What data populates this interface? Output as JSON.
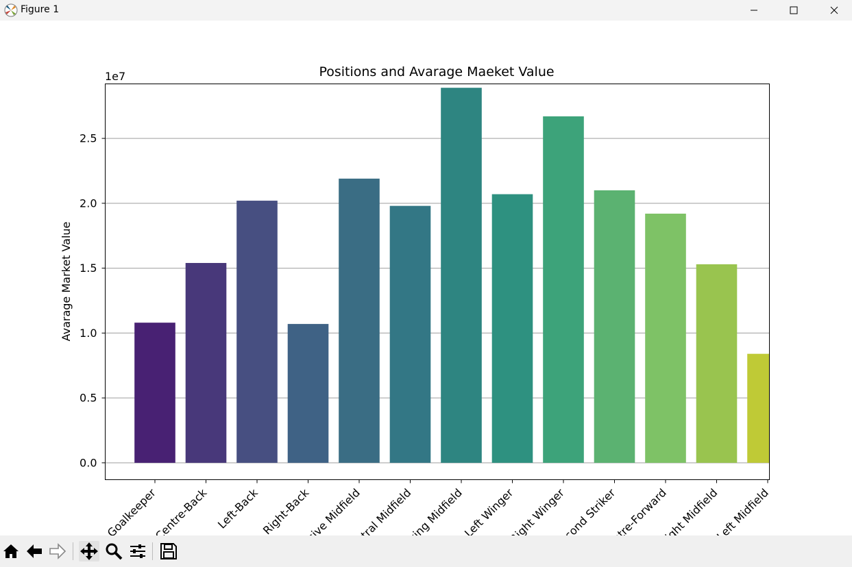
{
  "window": {
    "title": "Figure 1"
  },
  "toolbar": {
    "items": [
      {
        "icon": "home-icon"
      },
      {
        "icon": "back-arrow-icon"
      },
      {
        "icon": "forward-arrow-icon"
      },
      {
        "icon": "pan-move-icon",
        "active": true
      },
      {
        "icon": "zoom-magnifier-icon"
      },
      {
        "icon": "configure-subplots-icon"
      },
      {
        "icon": "save-icon"
      }
    ]
  },
  "chart_data": {
    "type": "bar",
    "title": "Positions and Avarage Maeket Value",
    "xlabel": "",
    "ylabel": "Avarage Market Value",
    "offset_text": "1e7",
    "categories": [
      "Goalkeeper",
      "Centre-Back",
      "Left-Back",
      "Right-Back",
      "Defensive Midfield",
      "Central Midfield",
      "Attacking Midfield",
      "Left Winger",
      "Right Winger",
      "Second Striker",
      "Centre-Forward",
      "Right Midfield",
      "Left Midfield"
    ],
    "values": [
      10800000,
      15400000,
      20200000,
      10700000,
      21900000,
      19800000,
      28900000,
      20700000,
      26700000,
      21000000,
      19200000,
      15300000,
      8400000
    ],
    "colors": [
      "#482173",
      "#48387a",
      "#474f81",
      "#3f6285",
      "#3a6d84",
      "#337785",
      "#2e8581",
      "#2e9180",
      "#3da37a",
      "#5bb271",
      "#7ec266",
      "#99c44f",
      "#bfca36"
    ],
    "ylim": [
      -1300000,
      29200000
    ],
    "yticks": [
      0,
      5000000,
      10000000,
      15000000,
      20000000,
      25000000
    ],
    "ytick_labels": [
      "0.0",
      "0.5",
      "1.0",
      "1.5",
      "2.0",
      "2.5"
    ],
    "grid": "y",
    "legend": "none"
  }
}
